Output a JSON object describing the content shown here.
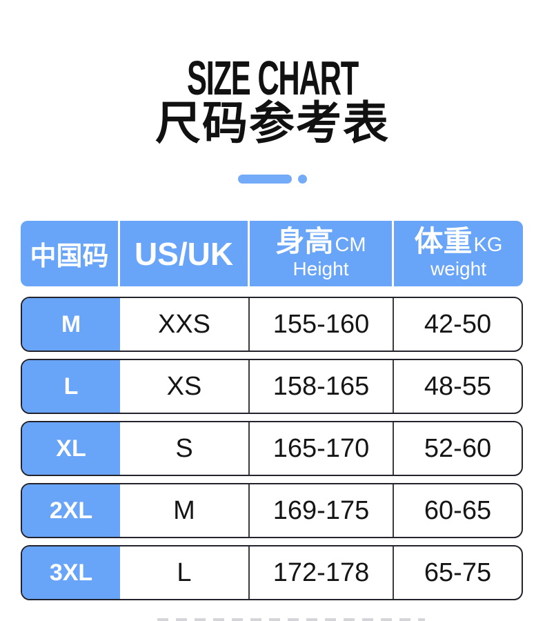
{
  "title": {
    "en": "SIZE CHART",
    "zh": "尺码参考表"
  },
  "divider": {
    "shape": "pill-and-dot"
  },
  "table": {
    "header": {
      "cn_size": "中国码",
      "us_uk": "US/UK",
      "height_zh": "身高",
      "height_unit": "CM",
      "height_en": "Height",
      "weight_zh": "体重",
      "weight_unit": "KG",
      "weight_en": "weight"
    },
    "rows": [
      {
        "cn": "M",
        "us_uk": "XXS",
        "height_cm": "155-160",
        "weight_kg": "42-50"
      },
      {
        "cn": "L",
        "us_uk": "XS",
        "height_cm": "158-165",
        "weight_kg": "48-55"
      },
      {
        "cn": "XL",
        "us_uk": "S",
        "height_cm": "165-170",
        "weight_kg": "52-60"
      },
      {
        "cn": "2XL",
        "us_uk": "M",
        "height_cm": "169-175",
        "weight_kg": "60-65"
      },
      {
        "cn": "3XL",
        "us_uk": "L",
        "height_cm": "172-178",
        "weight_kg": "65-75"
      }
    ]
  },
  "colors": {
    "accent_blue": "#68a4f7",
    "row_border": "#22222c",
    "cell_separator": "#3a3a42",
    "text_dark": "#151515",
    "header_text": "#ffffff"
  }
}
